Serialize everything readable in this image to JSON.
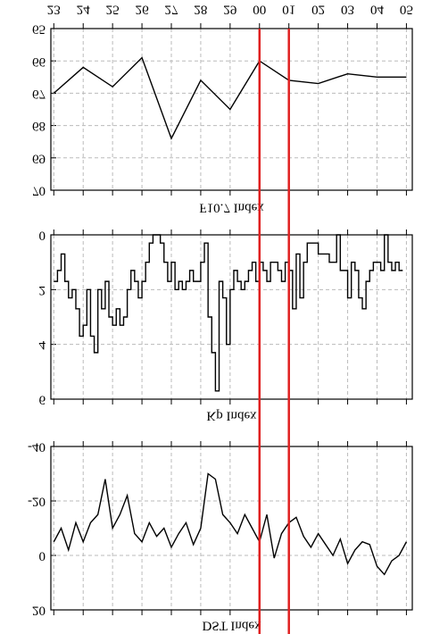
{
  "chart_data": [
    {
      "type": "line",
      "xlabel": "F10.7 Index",
      "x": [
        0,
        1,
        2,
        3,
        4,
        5,
        6,
        7,
        8,
        9,
        10,
        11,
        12
      ],
      "values": [
        67.0,
        66.2,
        66.8,
        65.9,
        68.4,
        66.6,
        67.5,
        66.0,
        66.6,
        66.7,
        66.4,
        66.5,
        66.5
      ],
      "color": "#000000",
      "xlim": [
        -0.1,
        12.2
      ],
      "xticks": [
        {
          "value": 0,
          "label": "23"
        },
        {
          "value": 1,
          "label": "24"
        },
        {
          "value": 2,
          "label": "25"
        },
        {
          "value": 3,
          "label": "26"
        },
        {
          "value": 4,
          "label": "27"
        },
        {
          "value": 5,
          "label": "28"
        },
        {
          "value": 6,
          "label": "29"
        },
        {
          "value": 7,
          "label": "00"
        },
        {
          "value": 8,
          "label": "01"
        },
        {
          "value": 9,
          "label": "02"
        },
        {
          "value": 10,
          "label": "03"
        },
        {
          "value": 11,
          "label": "04"
        },
        {
          "value": 12,
          "label": "05"
        }
      ],
      "ylim": [
        65,
        70
      ],
      "yticks": [
        65,
        66,
        67,
        68,
        69,
        70
      ],
      "grid": true,
      "vlines": [
        7,
        8
      ],
      "vline_color": "#e02020"
    },
    {
      "type": "step",
      "xlabel": "Kp Index",
      "x": [
        0,
        0.125,
        0.25,
        0.375,
        0.5,
        0.625,
        0.75,
        0.875,
        1,
        1.125,
        1.25,
        1.375,
        1.5,
        1.625,
        1.75,
        1.875,
        2,
        2.125,
        2.25,
        2.375,
        2.5,
        2.625,
        2.75,
        2.875,
        3,
        3.125,
        3.25,
        3.375,
        3.5,
        3.625,
        3.75,
        3.875,
        4,
        4.125,
        4.25,
        4.375,
        4.5,
        4.625,
        4.75,
        4.875,
        5,
        5.125,
        5.25,
        5.375,
        5.5,
        5.625,
        5.75,
        5.875,
        6,
        6.125,
        6.25,
        6.375,
        6.5,
        6.625,
        6.75,
        6.875,
        7,
        7.125,
        7.25,
        7.375,
        7.5,
        7.625,
        7.75,
        7.875,
        8,
        8.125,
        8.25,
        8.375,
        8.5,
        8.625,
        8.75,
        8.875,
        9,
        9.125,
        9.25,
        9.375,
        9.5,
        9.625,
        9.75,
        9.875,
        10,
        10.125,
        10.25,
        10.375,
        10.5,
        10.625,
        10.75,
        10.875,
        11,
        11.125,
        11.25,
        11.375,
        11.5,
        11.625,
        11.75,
        11.875
      ],
      "values": [
        1.7,
        1.3,
        0.7,
        1.7,
        2.3,
        2.0,
        2.7,
        3.7,
        3.3,
        2.0,
        3.7,
        4.3,
        2.0,
        2.7,
        1.7,
        3.0,
        3.3,
        2.7,
        3.3,
        3.0,
        2.0,
        1.3,
        1.7,
        2.3,
        1.7,
        1.0,
        0.3,
        0,
        0,
        0.3,
        1.0,
        1.7,
        1.0,
        2.0,
        1.7,
        2.0,
        1.7,
        1.3,
        1.7,
        1.7,
        1.0,
        0.3,
        3.0,
        4.3,
        5.7,
        1.7,
        2.3,
        4.0,
        2.0,
        1.3,
        1.7,
        2.0,
        1.7,
        1.3,
        1.0,
        1.7,
        1.0,
        1.3,
        1.7,
        1.0,
        1.0,
        1.3,
        1.7,
        1.0,
        1.3,
        2.7,
        0.7,
        2.3,
        1.0,
        0.3,
        0.3,
        0.3,
        0.7,
        0.7,
        0.7,
        1.0,
        1.0,
        0,
        1.3,
        1.3,
        2.3,
        1.0,
        1.3,
        2.3,
        2.7,
        1.7,
        1.3,
        1.0,
        1.0,
        1.3,
        0,
        1.0,
        1.3,
        1.0,
        1.3,
        1.3
      ],
      "color": "#000000",
      "xlim": [
        -0.1,
        12.2
      ],
      "ylim": [
        0,
        6
      ],
      "yticks": [
        0,
        2,
        4,
        6
      ],
      "grid": true
    },
    {
      "type": "line",
      "xlabel": "DST Index",
      "x": [
        0,
        0.25,
        0.5,
        0.75,
        1,
        1.25,
        1.5,
        1.75,
        2,
        2.25,
        2.5,
        2.75,
        3,
        3.25,
        3.5,
        3.75,
        4,
        4.25,
        4.5,
        4.75,
        5,
        5.25,
        5.5,
        5.75,
        6,
        6.25,
        6.5,
        6.75,
        7,
        7.25,
        7.5,
        7.75,
        8,
        8.25,
        8.5,
        8.75,
        9,
        9.25,
        9.5,
        9.75,
        10,
        10.25,
        10.5,
        10.75,
        11,
        11.25,
        11.5,
        11.75,
        12
      ],
      "values": [
        -5,
        -10,
        -2,
        -12,
        -5,
        -12,
        -15,
        -28,
        -10,
        -15,
        -22,
        -8,
        -5,
        -12,
        -7,
        -10,
        -3,
        -8,
        -12,
        -4,
        -10,
        -30,
        -28,
        -15,
        -12,
        -8,
        -15,
        -10,
        -5,
        -15,
        1,
        -8,
        -12,
        -14,
        -7,
        -3,
        -8,
        -4,
        0,
        -6,
        3,
        -2,
        -5,
        -4,
        4,
        7,
        2,
        0,
        -5
      ],
      "color": "#000000",
      "xlim": [
        -0.1,
        12.2
      ],
      "ylim": [
        -40,
        20
      ],
      "yticks": [
        -40,
        -20,
        0,
        20
      ],
      "grid": true
    }
  ]
}
